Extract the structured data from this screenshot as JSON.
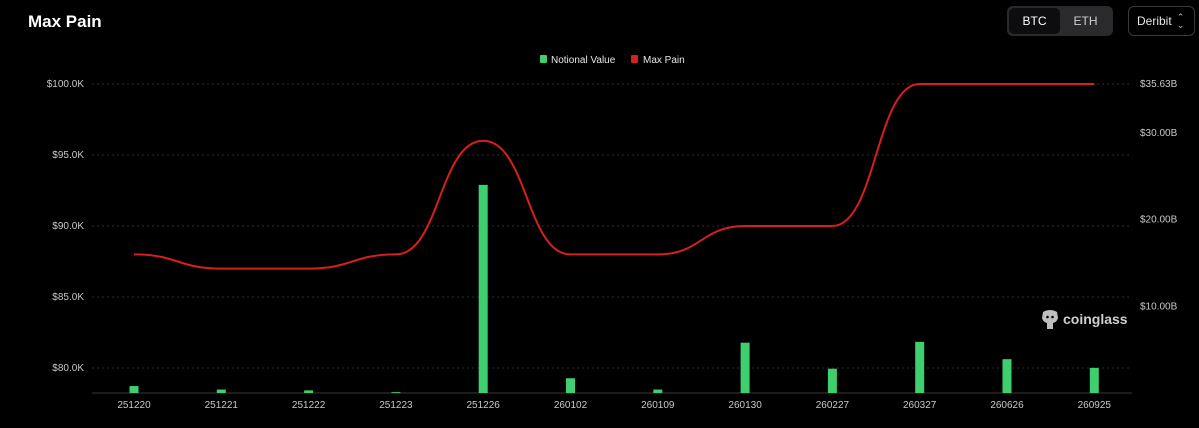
{
  "header": {
    "title": "Max Pain",
    "toggle": [
      {
        "label": "BTC",
        "active": true
      },
      {
        "label": "ETH",
        "active": false
      }
    ],
    "exchange_select": {
      "value": "Deribit"
    }
  },
  "watermark": "coinglass",
  "colors": {
    "notional": "#3ecf6e",
    "max_pain": "#d61f1f",
    "grid": "#2b2b2b",
    "background": "#000000"
  },
  "chart_data": {
    "type": "bar",
    "categories": [
      "251220",
      "251221",
      "251222",
      "251223",
      "251226",
      "260102",
      "260109",
      "260130",
      "260227",
      "260327",
      "260626",
      "260925"
    ],
    "series": [
      {
        "name": "Notional Value",
        "type": "bar",
        "axis": "right",
        "color": "#3ecf6e",
        "values": [
          0.8,
          0.4,
          0.3,
          0.1,
          24.0,
          1.7,
          0.4,
          5.8,
          2.8,
          5.9,
          3.9,
          2.9
        ]
      },
      {
        "name": "Max Pain",
        "type": "line",
        "axis": "left",
        "color": "#d61f1f",
        "values": [
          88000,
          87000,
          87000,
          88000,
          96000,
          88000,
          88000,
          90000,
          90000,
          100000,
          100000,
          100000
        ]
      }
    ],
    "y_left": {
      "ticks": [
        "$80.0K",
        "$85.0K",
        "$90.0K",
        "$95.0K",
        "$100.0K"
      ],
      "tick_values": [
        80000,
        85000,
        90000,
        95000,
        100000
      ],
      "range": [
        78200,
        100000
      ]
    },
    "y_right": {
      "ticks": [
        "$10.00B",
        "$20.00B",
        "$30.00B",
        "$35.63B"
      ],
      "tick_values": [
        10,
        20,
        30,
        35.63
      ],
      "range": [
        0,
        35.63
      ],
      "unit": "B USD"
    },
    "grid": true,
    "legend_position": "top-center",
    "legend": [
      "Notional Value",
      "Max Pain"
    ]
  }
}
